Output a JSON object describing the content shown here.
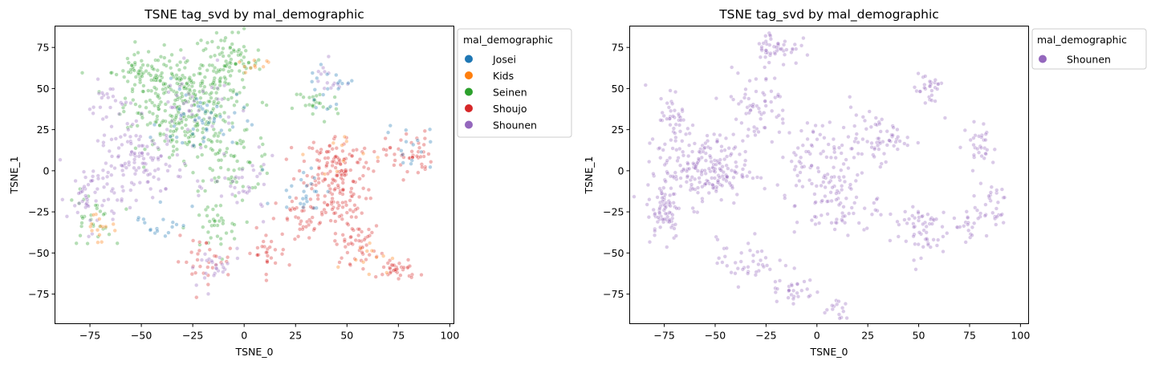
{
  "chart_data": [
    {
      "type": "scatter",
      "title": "TSNE tag_svd by mal_demographic",
      "xlabel": "TSNE_0",
      "ylabel": "TSNE_1",
      "xlim": [
        -92,
        102
      ],
      "ylim": [
        -93,
        88
      ],
      "xticks": [
        -75,
        -50,
        -25,
        0,
        25,
        50,
        75,
        100
      ],
      "yticks": [
        -75,
        -50,
        -25,
        0,
        25,
        50,
        75
      ],
      "legend": {
        "title": "mal_demographic",
        "placement": "outside-top-right",
        "entries": [
          "Josei",
          "Kids",
          "Seinen",
          "Shoujo",
          "Shounen"
        ]
      },
      "colors": {
        "Josei": "#1f77b4",
        "Kids": "#ff7f0e",
        "Seinen": "#2ca02c",
        "Shoujo": "#d62728",
        "Shounen": "#9467bd"
      },
      "point_alpha": 0.35,
      "series": [
        {
          "name": "Seinen",
          "clusters": [
            [
              -30,
              45,
              20,
              18,
              260
            ],
            [
              -8,
              65,
              12,
              14,
              90
            ],
            [
              -50,
              60,
              10,
              8,
              50
            ],
            [
              -25,
              20,
              15,
              10,
              70
            ],
            [
              -5,
              5,
              15,
              12,
              60
            ],
            [
              -75,
              -30,
              8,
              12,
              30
            ],
            [
              -15,
              -35,
              10,
              12,
              35
            ],
            [
              35,
              40,
              8,
              8,
              25
            ]
          ]
        },
        {
          "name": "Shoujo",
          "clusters": [
            [
              45,
              5,
              12,
              12,
              110
            ],
            [
              45,
              -20,
              10,
              12,
              70
            ],
            [
              80,
              10,
              8,
              10,
              45
            ],
            [
              30,
              -30,
              10,
              10,
              40
            ],
            [
              75,
              -60,
              7,
              5,
              35
            ],
            [
              55,
              -45,
              8,
              8,
              45
            ],
            [
              10,
              -50,
              8,
              10,
              30
            ],
            [
              -20,
              -55,
              10,
              10,
              30
            ]
          ]
        },
        {
          "name": "Shounen",
          "clusters": [
            [
              -50,
              5,
              15,
              15,
              120
            ],
            [
              -75,
              -15,
              8,
              15,
              50
            ],
            [
              -65,
              40,
              8,
              10,
              25
            ],
            [
              -25,
              40,
              15,
              15,
              40
            ],
            [
              0,
              -10,
              12,
              12,
              35
            ],
            [
              -15,
              -60,
              10,
              10,
              25
            ],
            [
              40,
              55,
              5,
              8,
              15
            ]
          ]
        },
        {
          "name": "Josei",
          "clusters": [
            [
              -20,
              30,
              15,
              15,
              45
            ],
            [
              40,
              50,
              8,
              8,
              20
            ],
            [
              30,
              -10,
              10,
              12,
              25
            ],
            [
              80,
              15,
              8,
              10,
              15
            ],
            [
              -40,
              -30,
              10,
              10,
              18
            ]
          ]
        },
        {
          "name": "Kids",
          "clusters": [
            [
              -70,
              -35,
              8,
              8,
              15
            ],
            [
              60,
              -50,
              8,
              8,
              12
            ],
            [
              0,
              60,
              8,
              8,
              10
            ],
            [
              45,
              10,
              10,
              10,
              10
            ]
          ]
        }
      ]
    },
    {
      "type": "scatter",
      "title": "TSNE tag_svd by mal_demographic",
      "xlabel": "TSNE_0",
      "ylabel": "TSNE_1",
      "xlim": [
        -92,
        104
      ],
      "ylim": [
        -93,
        88
      ],
      "xticks": [
        -75,
        -50,
        -25,
        0,
        25,
        50,
        75,
        100
      ],
      "yticks": [
        -75,
        -50,
        -25,
        0,
        25,
        50,
        75
      ],
      "legend": {
        "title": "mal_demographic",
        "placement": "outside-top-right",
        "entries": [
          "Shounen"
        ]
      },
      "colors": {
        "Shounen": "#9467bd"
      },
      "point_alpha": 0.35,
      "series": [
        {
          "name": "Shounen",
          "clusters": [
            [
              -55,
              0,
              15,
              15,
              200
            ],
            [
              -75,
              -25,
              6,
              12,
              70
            ],
            [
              -70,
              30,
              6,
              15,
              50
            ],
            [
              -20,
              75,
              8,
              8,
              50
            ],
            [
              -30,
              40,
              12,
              15,
              60
            ],
            [
              0,
              10,
              15,
              15,
              80
            ],
            [
              10,
              -20,
              15,
              15,
              80
            ],
            [
              30,
              20,
              10,
              10,
              60
            ],
            [
              55,
              50,
              5,
              10,
              30
            ],
            [
              50,
              -35,
              10,
              12,
              60
            ],
            [
              80,
              15,
              6,
              10,
              30
            ],
            [
              85,
              -20,
              6,
              10,
              30
            ],
            [
              75,
              -35,
              5,
              8,
              20
            ],
            [
              -35,
              -55,
              10,
              10,
              40
            ],
            [
              -12,
              -70,
              8,
              12,
              30
            ],
            [
              10,
              -85,
              4,
              4,
              15
            ]
          ]
        }
      ]
    }
  ]
}
